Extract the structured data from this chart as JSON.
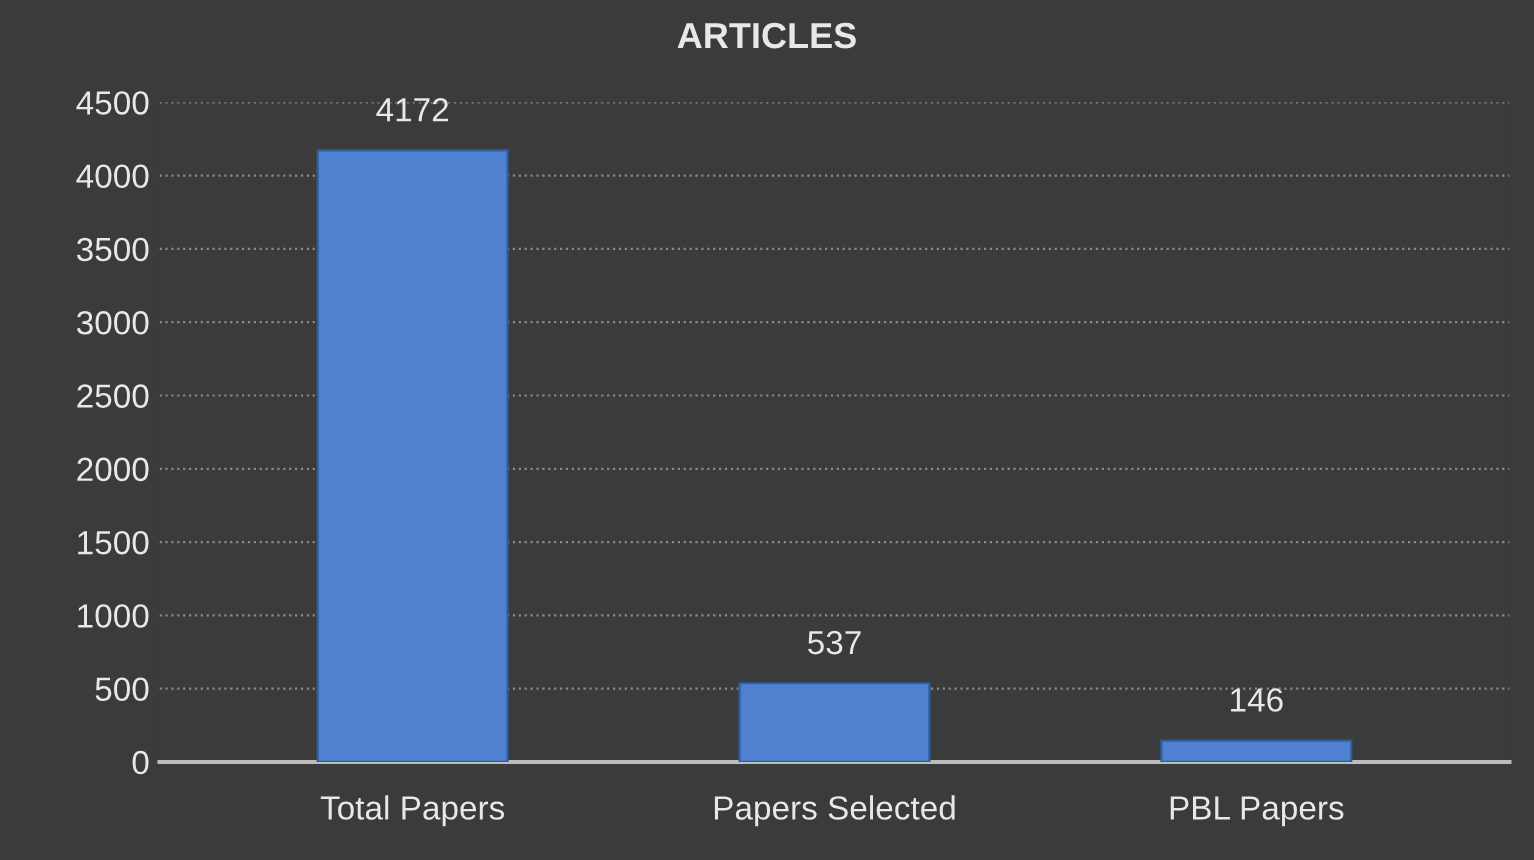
{
  "chart_data": {
    "type": "bar",
    "title": "ARTICLES",
    "categories": [
      "Total Papers",
      "Papers Selected",
      "PBL Papers"
    ],
    "values": [
      4172,
      537,
      146
    ],
    "color": "#4f81d0",
    "ylim": [
      0,
      4500
    ],
    "yticks": [
      0,
      500,
      1000,
      1500,
      2000,
      2500,
      3000,
      3500,
      4000,
      4500
    ],
    "grid": "y",
    "data_labels": true
  }
}
